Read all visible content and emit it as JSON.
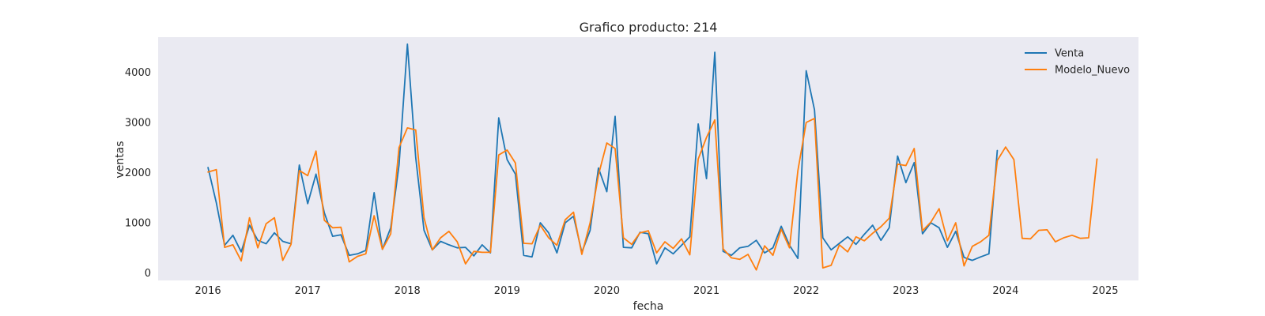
{
  "chart_data": {
    "type": "line",
    "title": "Grafico producto: 214",
    "xlabel": "fecha",
    "ylabel": "ventas",
    "x_axis": "date",
    "xlim": [
      "2015-07-01",
      "2025-05-01"
    ],
    "ylim": [
      -150,
      4700
    ],
    "x_ticks": [
      "2016",
      "2017",
      "2018",
      "2019",
      "2020",
      "2021",
      "2022",
      "2023",
      "2024",
      "2025"
    ],
    "y_ticks": [
      0,
      1000,
      2000,
      3000,
      4000
    ],
    "grid": false,
    "legend_position": "top-right",
    "series": [
      {
        "name": "Venta",
        "color": "#1f77b4",
        "start": "2016-01",
        "values": [
          2100,
          1400,
          550,
          750,
          420,
          950,
          650,
          580,
          800,
          630,
          580,
          2150,
          1380,
          1970,
          1200,
          730,
          760,
          350,
          380,
          450,
          1600,
          470,
          900,
          2150,
          4560,
          2300,
          850,
          460,
          630,
          560,
          500,
          510,
          340,
          560,
          400,
          3090,
          2260,
          1970,
          350,
          320,
          1000,
          800,
          400,
          1000,
          1130,
          410,
          850,
          2090,
          1620,
          3120,
          510,
          500,
          810,
          780,
          180,
          500,
          380,
          550,
          720,
          2970,
          1880,
          4400,
          430,
          350,
          500,
          530,
          650,
          400,
          500,
          930,
          550,
          290,
          4030,
          3250,
          700,
          460,
          590,
          720,
          570,
          770,
          950,
          650,
          900,
          2330,
          1800,
          2200,
          780,
          1000,
          900,
          510,
          830,
          310,
          250,
          320,
          380,
          2440
        ]
      },
      {
        "name": "Modelo_Nuevo",
        "color": "#ff7f0e",
        "start": "2016-01",
        "values": [
          2010,
          2060,
          510,
          560,
          240,
          1100,
          500,
          980,
          1100,
          250,
          570,
          2040,
          1940,
          2430,
          1050,
          900,
          910,
          220,
          330,
          380,
          1140,
          470,
          780,
          2500,
          2890,
          2850,
          1100,
          460,
          700,
          830,
          620,
          180,
          430,
          410,
          410,
          2350,
          2450,
          2190,
          590,
          580,
          950,
          700,
          550,
          1060,
          1210,
          370,
          1000,
          1950,
          2590,
          2480,
          700,
          570,
          800,
          840,
          400,
          620,
          490,
          680,
          360,
          2270,
          2700,
          3050,
          480,
          300,
          270,
          370,
          60,
          540,
          350,
          870,
          500,
          2040,
          3000,
          3080,
          100,
          150,
          560,
          420,
          720,
          640,
          790,
          920,
          1090,
          2170,
          2140,
          2480,
          840,
          1010,
          1280,
          640,
          1000,
          140,
          530,
          620,
          750,
          2240,
          2510,
          2260,
          690,
          680,
          850,
          860,
          620,
          700,
          750,
          690,
          700,
          2270
        ]
      }
    ]
  }
}
